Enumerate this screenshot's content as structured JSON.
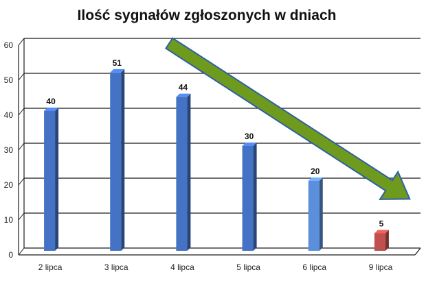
{
  "chart_data": {
    "type": "bar",
    "title": "Ilość sygnałów zgłoszonych w dniach",
    "xlabel": "",
    "ylabel": "",
    "categories": [
      "2 lipca",
      "3 lipca",
      "4 lipca",
      "5 lipca",
      "6 lipca",
      "9 lipca"
    ],
    "values": [
      40,
      51,
      44,
      30,
      20,
      5
    ],
    "data_labels": [
      "40",
      "51",
      "44",
      "30",
      "20",
      "5"
    ],
    "ylim": [
      0,
      60
    ],
    "yticks": [
      0,
      10,
      20,
      30,
      40,
      50,
      60
    ],
    "ytick_labels": [
      "0",
      "10",
      "20",
      "30",
      "40",
      "50",
      "60"
    ],
    "grid": true,
    "legend": "none",
    "bar_colors": [
      "#4472C4",
      "#4472C4",
      "#4472C4",
      "#4472C4",
      "#5B8FDB",
      "#C0504D"
    ],
    "trend_arrow": {
      "from": "3 lipca",
      "to": "9 lipca",
      "color": "#6E9A1E",
      "outline": "#2E5FA3"
    }
  }
}
